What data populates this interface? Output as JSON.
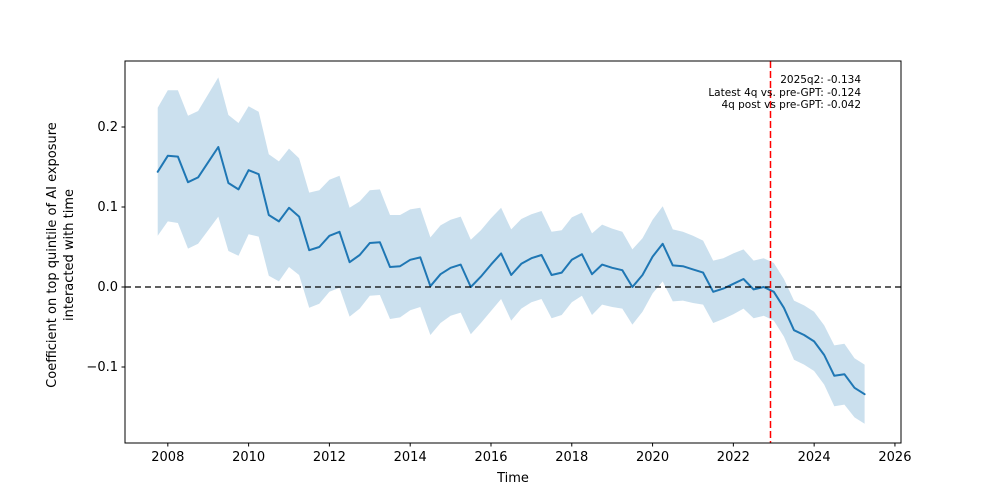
{
  "chart_data": {
    "type": "line",
    "subtype": "line-with-confidence-band",
    "title": "",
    "xlabel": "Time",
    "ylabel": "Coefficient on top quintile of AI exposure interacted with time",
    "grid": false,
    "legend": "none",
    "x_axis": {
      "label": "Time",
      "range": [
        2006.94,
        2026.15
      ],
      "ticks": [
        2008,
        2010,
        2012,
        2014,
        2016,
        2018,
        2020,
        2022,
        2024,
        2026
      ],
      "tick_labels": [
        "2008",
        "2010",
        "2012",
        "2014",
        "2016",
        "2018",
        "2020",
        "2022",
        "2024",
        "2026"
      ]
    },
    "y_axis": {
      "label_lines": [
        "Coefficient on top quintile of AI exposure",
        "interacted with time"
      ],
      "range": [
        -0.195,
        0.2825
      ],
      "ticks": [
        0.2,
        0.1,
        0.0,
        -0.1
      ],
      "tick_labels": [
        "0.2",
        "0.1",
        "0.0",
        "−0.1"
      ]
    },
    "series": {
      "name": "coefficient-on-top-quintile-ai-exposure",
      "quarters": [
        "2007q4",
        "2008q1",
        "2008q2",
        "2008q3",
        "2008q4",
        "2009q1",
        "2009q2",
        "2009q3",
        "2009q4",
        "2010q1",
        "2010q2",
        "2010q3",
        "2010q4",
        "2011q1",
        "2011q2",
        "2011q3",
        "2011q4",
        "2012q1",
        "2012q2",
        "2012q3",
        "2012q4",
        "2013q1",
        "2013q2",
        "2013q3",
        "2013q4",
        "2014q1",
        "2014q2",
        "2014q3",
        "2014q4",
        "2015q1",
        "2015q2",
        "2015q3",
        "2015q4",
        "2016q1",
        "2016q2",
        "2016q3",
        "2016q4",
        "2017q1",
        "2017q2",
        "2017q3",
        "2017q4",
        "2018q1",
        "2018q2",
        "2018q3",
        "2018q4",
        "2019q1",
        "2019q2",
        "2019q3",
        "2019q4",
        "2020q1",
        "2020q2",
        "2020q3",
        "2020q4",
        "2021q1",
        "2021q2",
        "2021q3",
        "2021q4",
        "2022q1",
        "2022q2",
        "2022q3",
        "2022q4",
        "2023q1",
        "2023q2",
        "2023q3",
        "2023q4",
        "2024q1",
        "2024q2",
        "2024q3",
        "2024q4",
        "2025q1",
        "2025q2"
      ],
      "values": [
        0.144,
        0.164,
        0.163,
        0.131,
        0.137,
        0.156,
        0.175,
        0.13,
        0.122,
        0.146,
        0.141,
        0.09,
        0.082,
        0.099,
        0.088,
        0.046,
        0.05,
        0.064,
        0.069,
        0.031,
        0.04,
        0.055,
        0.056,
        0.025,
        0.026,
        0.034,
        0.037,
        0.001,
        0.016,
        0.024,
        0.028,
        0.0,
        0.013,
        0.028,
        0.042,
        0.015,
        0.029,
        0.036,
        0.04,
        0.015,
        0.018,
        0.034,
        0.041,
        0.016,
        0.028,
        0.024,
        0.021,
        0.0,
        0.015,
        0.038,
        0.054,
        0.027,
        0.026,
        0.022,
        0.018,
        -0.006,
        -0.002,
        0.004,
        0.01,
        -0.003,
        0.0,
        -0.006,
        -0.026,
        -0.054,
        -0.06,
        -0.068,
        -0.085,
        -0.111,
        -0.109,
        -0.126,
        -0.134
      ],
      "ci_halfwidth": [
        0.08,
        0.082,
        0.083,
        0.083,
        0.083,
        0.085,
        0.087,
        0.085,
        0.083,
        0.08,
        0.078,
        0.076,
        0.075,
        0.074,
        0.073,
        0.072,
        0.071,
        0.07,
        0.07,
        0.068,
        0.067,
        0.066,
        0.066,
        0.065,
        0.064,
        0.063,
        0.062,
        0.061,
        0.061,
        0.06,
        0.06,
        0.059,
        0.058,
        0.058,
        0.057,
        0.057,
        0.056,
        0.055,
        0.055,
        0.054,
        0.053,
        0.053,
        0.052,
        0.051,
        0.05,
        0.049,
        0.048,
        0.047,
        0.046,
        0.046,
        0.047,
        0.045,
        0.043,
        0.042,
        0.04,
        0.039,
        0.038,
        0.038,
        0.037,
        0.036,
        0.036,
        0.036,
        0.036,
        0.037,
        0.037,
        0.037,
        0.037,
        0.038,
        0.038,
        0.037,
        0.037
      ]
    },
    "reference_lines": {
      "zero_hline": {
        "y": 0.0,
        "style": "dashed",
        "color": "#000000"
      },
      "vline": {
        "x": 2022.92,
        "style": "dashed",
        "color": "#ff0000"
      }
    },
    "annotation": {
      "lines": [
        "2025q2: -0.134",
        "Latest 4q vs. pre-GPT: -0.124",
        "4q post vs pre-GPT: -0.042"
      ],
      "align": "right"
    },
    "colors": {
      "line": "#1f77b4",
      "band_fill": "#1f77b4",
      "band_opacity": 0.23,
      "vline": "#ff0000",
      "zero_line": "#000000",
      "frame": "#000000",
      "background": "#ffffff"
    }
  }
}
